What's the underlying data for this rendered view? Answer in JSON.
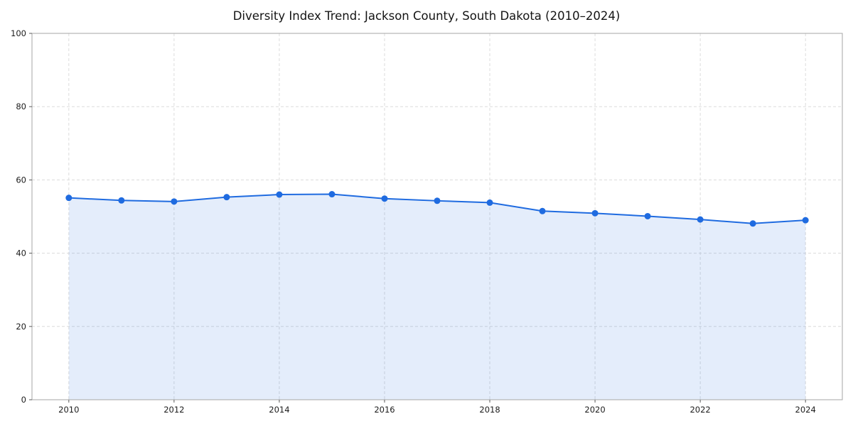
{
  "chart_data": {
    "type": "area",
    "title": "Diversity Index Trend: Jackson County, South Dakota (2010–2024)",
    "xlabel": "",
    "ylabel": "",
    "x": [
      2010,
      2011,
      2012,
      2013,
      2014,
      2015,
      2016,
      2017,
      2018,
      2019,
      2020,
      2021,
      2022,
      2023,
      2024
    ],
    "series": [
      {
        "name": "Diversity Index",
        "values": [
          55.1,
          54.4,
          54.1,
          55.3,
          56.0,
          56.1,
          54.9,
          54.3,
          53.8,
          51.5,
          50.9,
          50.1,
          49.2,
          48.1,
          49.0
        ]
      }
    ],
    "ylim": [
      0,
      100
    ],
    "yticks": [
      0,
      20,
      40,
      60,
      80,
      100
    ],
    "xticks": [
      2010,
      2012,
      2014,
      2016,
      2018,
      2020,
      2022,
      2024
    ],
    "grid": true,
    "legend_position": "none",
    "line_color": "#1f6be0",
    "marker_color": "#1f6be0",
    "fill_color": "#1f6be0",
    "fill_opacity": 0.12
  }
}
